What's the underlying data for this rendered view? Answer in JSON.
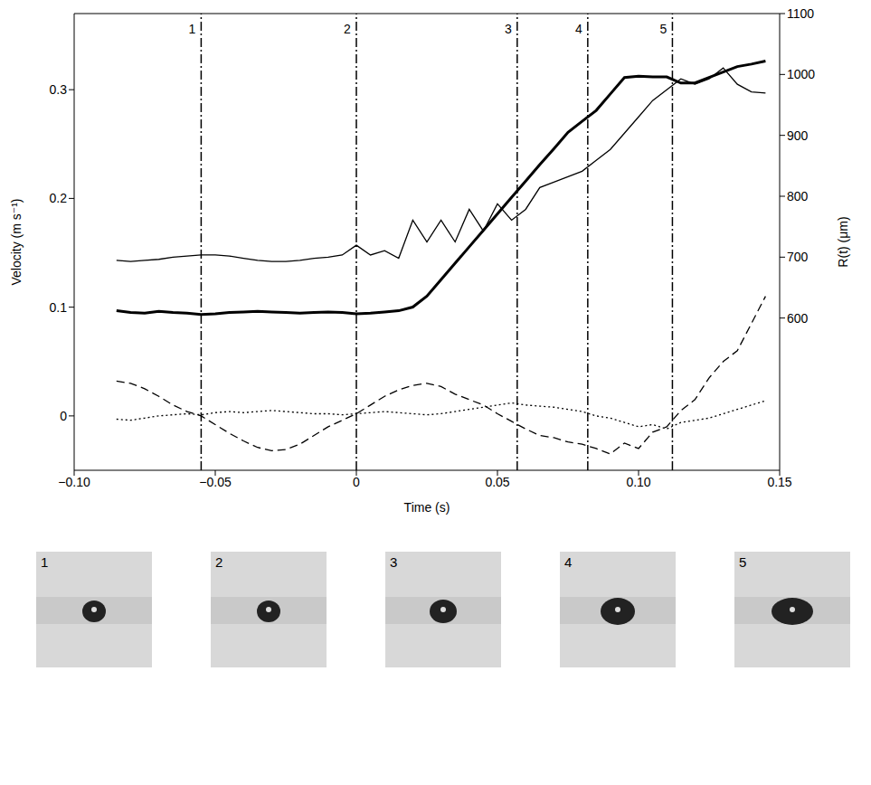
{
  "chart_data": {
    "type": "line",
    "x_label": "Time (s)",
    "y_label": "Velocity (m s⁻¹)",
    "y2_label": "R(t) (μm)",
    "x": [
      -0.085,
      -0.08,
      -0.075,
      -0.07,
      -0.065,
      -0.06,
      -0.055,
      -0.05,
      -0.045,
      -0.04,
      -0.035,
      -0.03,
      -0.025,
      -0.02,
      -0.015,
      -0.01,
      -0.005,
      0,
      0.005,
      0.01,
      0.015,
      0.02,
      0.025,
      0.03,
      0.035,
      0.04,
      0.045,
      0.05,
      0.055,
      0.06,
      0.065,
      0.07,
      0.075,
      0.08,
      0.085,
      0.09,
      0.095,
      0.1,
      0.105,
      0.11,
      0.115,
      0.12,
      0.125,
      0.13,
      0.135,
      0.14,
      0.145
    ],
    "xlim": [
      -0.1,
      0.15
    ],
    "xticks": [
      {
        "value": -0.1,
        "label": "−0.10"
      },
      {
        "value": -0.05,
        "label": "−0.05"
      },
      0,
      {
        "value": 0.05,
        "label": "0.05"
      },
      {
        "value": 0.1,
        "label": "0.10"
      },
      {
        "value": 0.15,
        "label": "0.15"
      }
    ],
    "ylim": [
      -0.05,
      0.37
    ],
    "yticks": [
      0,
      0.1,
      0.2,
      0.3
    ],
    "y2lim": [
      350,
      1100
    ],
    "y2ticks": [
      600,
      700,
      800,
      900,
      1000,
      1100
    ],
    "grid": false,
    "series": [
      {
        "color": "#000000",
        "line_style": "solid",
        "axis": "y2",
        "values": [
          612,
          609,
          608,
          611,
          609,
          608,
          606,
          607,
          609,
          610,
          611,
          610,
          609,
          608,
          609,
          610,
          609,
          607,
          608,
          610,
          612,
          618,
          636,
          663,
          690,
          717,
          744,
          771,
          798,
          825,
          852,
          878,
          905,
          923,
          941,
          968,
          995,
          997,
          996,
          996,
          986,
          986,
          995,
          1004,
          1013,
          1017,
          1022
        ]
      },
      {
        "color": "#000000",
        "line_style": "solid",
        "axis": "y",
        "values": [
          0.143,
          0.142,
          0.143,
          0.144,
          0.146,
          0.147,
          0.148,
          0.148,
          0.147,
          0.145,
          0.143,
          0.142,
          0.142,
          0.143,
          0.145,
          0.146,
          0.148,
          0.157,
          0.148,
          0.152,
          0.145,
          0.18,
          0.16,
          0.18,
          0.16,
          0.19,
          0.17,
          0.195,
          0.18,
          0.19,
          0.21,
          0.215,
          0.22,
          0.225,
          0.235,
          0.245,
          0.26,
          0.275,
          0.29,
          0.3,
          0.31,
          0.305,
          0.31,
          0.32,
          0.305,
          0.298,
          0.297
        ]
      },
      {
        "color": "#000000",
        "line_style": "dashed",
        "axis": "y",
        "values": [
          0.032,
          0.03,
          0.025,
          0.018,
          0.01,
          0.004,
          0,
          -0.008,
          -0.016,
          -0.023,
          -0.029,
          -0.032,
          -0.031,
          -0.026,
          -0.018,
          -0.01,
          -0.004,
          0.002,
          0.01,
          0.018,
          0.024,
          0.028,
          0.03,
          0.027,
          0.02,
          0.015,
          0.01,
          0.002,
          -0.005,
          -0.012,
          -0.018,
          -0.02,
          -0.024,
          -0.026,
          -0.03,
          -0.035,
          -0.025,
          -0.03,
          -0.015,
          -0.01,
          0.005,
          0.015,
          0.035,
          0.05,
          0.06,
          0.085,
          0.11
        ]
      },
      {
        "color": "#000000",
        "line_style": "dotted",
        "axis": "y",
        "values": [
          -0.003,
          -0.004,
          -0.002,
          0,
          0.001,
          0.002,
          0.001,
          0.003,
          0.004,
          0.003,
          0.004,
          0.005,
          0.004,
          0.003,
          0.002,
          0.002,
          0.001,
          0.002,
          0.003,
          0.004,
          0.003,
          0.002,
          0.001,
          0.002,
          0.004,
          0.006,
          0.008,
          0.01,
          0.012,
          0.01,
          0.009,
          0.008,
          0.006,
          0.004,
          0,
          -0.002,
          -0.006,
          -0.01,
          -0.008,
          -0.012,
          -0.006,
          -0.004,
          -0.002,
          0.002,
          0.006,
          0.01,
          0.014
        ]
      }
    ],
    "markers": [
      {
        "x": -0.055,
        "label": "1"
      },
      {
        "x": 0,
        "label": "2"
      },
      {
        "x": 0.057,
        "label": "3"
      },
      {
        "x": 0.082,
        "label": "4"
      },
      {
        "x": 0.112,
        "label": "5"
      }
    ],
    "panel_labels": [
      "1",
      "2",
      "3",
      "4",
      "5"
    ]
  }
}
